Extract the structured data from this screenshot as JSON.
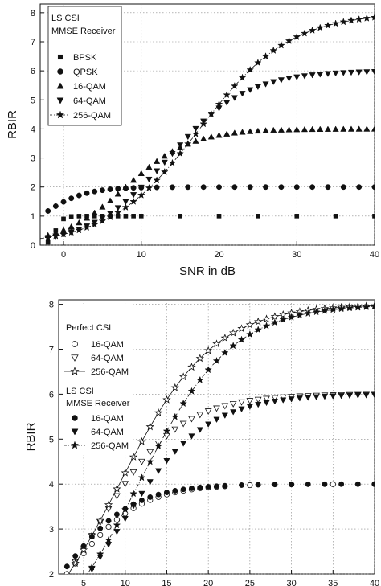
{
  "chart_data": [
    {
      "type": "scatter",
      "xlabel": "SNR in dB",
      "ylabel": "RBIR",
      "xlim": [
        -3,
        40
      ],
      "ylim": [
        0,
        8.3
      ],
      "xticks": [
        0,
        10,
        20,
        30,
        40
      ],
      "yticks": [
        0,
        1,
        2,
        3,
        4,
        5,
        6,
        7,
        8
      ],
      "grid": true,
      "legend_position": "top-left",
      "legend": {
        "header": [
          "LS CSI",
          "MMSE Receiver"
        ],
        "entries": [
          "BPSK",
          "QPSK",
          "16-QAM",
          "64-QAM",
          "256-QAM"
        ]
      },
      "series": [
        {
          "name": "BPSK",
          "marker": "square",
          "max": 1,
          "mid": -1.0,
          "scale": 0.45,
          "dense_to": 10,
          "sparse_step": 5
        },
        {
          "name": "QPSK",
          "marker": "circle",
          "max": 2,
          "mid": -3.0,
          "scale": 2.8,
          "dense_to": 10,
          "sparse_step": 2
        },
        {
          "name": "16-QAM",
          "marker": "triangle-up",
          "max": 4,
          "mid": 8.0,
          "scale": 4.2,
          "dense_to": 12,
          "sparse_step": 1
        },
        {
          "name": "64-QAM",
          "marker": "triangle-down",
          "max": 6,
          "mid": 13.5,
          "scale": 5.0,
          "dense_to": 14,
          "sparse_step": 1
        },
        {
          "name": "256-QAM",
          "marker": "star",
          "max": 8,
          "mid": 17.5,
          "scale": 5.8,
          "dense_to": 40,
          "sparse_step": 1,
          "line": "dashdot"
        }
      ]
    },
    {
      "type": "scatter",
      "xlabel": "SNR in dB",
      "ylabel": "RBIR",
      "xlim": [
        2,
        40
      ],
      "ylim": [
        2,
        8.1
      ],
      "xticks": [
        5,
        10,
        15,
        20,
        25,
        30,
        35,
        40
      ],
      "yticks": [
        2,
        3,
        4,
        5,
        6,
        7,
        8
      ],
      "grid": true,
      "legend_position": "top-left",
      "legend": {
        "groups": [
          {
            "header": [
              "Perfect CSI"
            ],
            "entries": [
              "16-QAM",
              "64-QAM",
              "256-QAM"
            ]
          },
          {
            "header": [
              "LS CSI",
              "MMSE Receiver"
            ],
            "entries": [
              "16-QAM",
              "64-QAM",
              "256-QAM"
            ]
          }
        ]
      },
      "series": [
        {
          "name": "Perfect CSI 16-QAM",
          "marker": "circle-open",
          "max": 4,
          "mid": 3.0,
          "scale": 4.3,
          "dense_to": 22,
          "sparse_step": 5
        },
        {
          "name": "Perfect CSI 64-QAM",
          "marker": "triangle-down-open",
          "max": 6,
          "mid": 6.5,
          "scale": 5.0,
          "dense_to": 40,
          "sparse_step": 1
        },
        {
          "name": "Perfect CSI 256-QAM",
          "marker": "star-open",
          "max": 8,
          "mid": 9.3,
          "scale": 5.6,
          "dense_to": 40,
          "sparse_step": 1,
          "line": "solid"
        },
        {
          "name": "LS CSI 16-QAM",
          "marker": "circle",
          "max": 4,
          "mid": 2.3,
          "scale": 4.2,
          "dense_to": 22,
          "sparse_step": 2
        },
        {
          "name": "LS CSI 64-QAM",
          "marker": "triangle-down",
          "max": 6,
          "mid": 9.2,
          "scale": 5.2,
          "dense_to": 40,
          "sparse_step": 1
        },
        {
          "name": "LS CSI 256-QAM",
          "marker": "star",
          "max": 8,
          "mid": 11.6,
          "scale": 5.6,
          "dense_to": 40,
          "sparse_step": 1,
          "line": "dashdot"
        }
      ]
    }
  ]
}
